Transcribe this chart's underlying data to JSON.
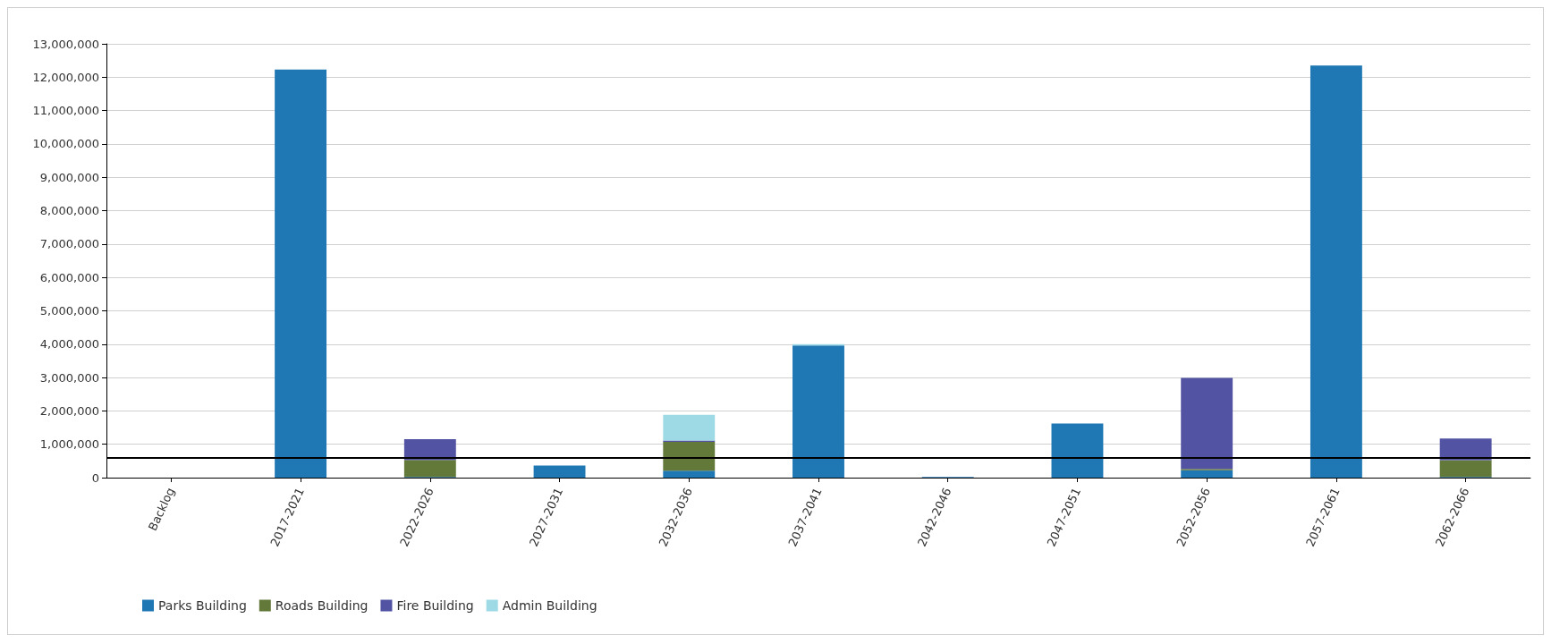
{
  "chart_data": {
    "type": "bar",
    "stacked": true,
    "categories": [
      "Backlog",
      "2017-2021",
      "2022-2026",
      "2027-2031",
      "2032-2036",
      "2037-2041",
      "2042-2046",
      "2047-2051",
      "2052-2056",
      "2057-2061",
      "2062-2066"
    ],
    "series": [
      {
        "name": "Parks Building",
        "color": "#1f77b4",
        "values": [
          0,
          12230000,
          20000,
          360000,
          210000,
          3960000,
          20000,
          1620000,
          220000,
          12350000,
          20000
        ]
      },
      {
        "name": "Roads Building",
        "color": "#637939",
        "values": [
          0,
          0,
          510000,
          0,
          860000,
          0,
          0,
          0,
          40000,
          0,
          500000
        ]
      },
      {
        "name": "Fire Building",
        "color": "#5254a3",
        "values": [
          0,
          0,
          620000,
          0,
          40000,
          0,
          0,
          0,
          2730000,
          0,
          650000
        ]
      },
      {
        "name": "Admin Building",
        "color": "#9edae5",
        "values": [
          0,
          0,
          0,
          0,
          770000,
          40000,
          0,
          0,
          0,
          0,
          0
        ]
      }
    ],
    "ylim": [
      0,
      13000000
    ],
    "yticks": [
      0,
      {
        "value": 1000000,
        "label": "1,000,000"
      },
      {
        "value": 2000000,
        "label": "2,000,000"
      },
      {
        "value": 3000000,
        "label": "3,000,000"
      },
      {
        "value": 4000000,
        "label": "4,000,000"
      },
      {
        "value": 5000000,
        "label": "5,000,000"
      },
      {
        "value": 6000000,
        "label": "6,000,000"
      },
      {
        "value": 7000000,
        "label": "7,000,000"
      },
      {
        "value": 8000000,
        "label": "8,000,000"
      },
      {
        "value": 9000000,
        "label": "9,000,000"
      },
      {
        "value": 10000000,
        "label": "10,000,000"
      },
      {
        "value": 11000000,
        "label": "11,000,000"
      },
      {
        "value": 12000000,
        "label": "12,000,000"
      },
      {
        "value": 13000000,
        "label": "13,000,000"
      }
    ],
    "grid": "y",
    "legend": "bottom left",
    "ref_lines": [
      {
        "axis": "y",
        "value": 600000,
        "color": "#000000"
      }
    ]
  }
}
